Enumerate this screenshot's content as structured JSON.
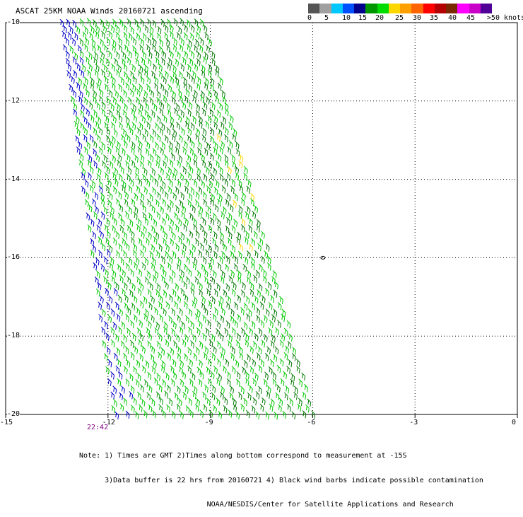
{
  "title": "ASCAT 25KM NOAA Winds 20160721 ascending",
  "colorbar": {
    "colors": [
      "#555555",
      "#a0a0a0",
      "#00c8ff",
      "#0050ff",
      "#00008c",
      "#009600",
      "#00dc00",
      "#ffd700",
      "#ffa000",
      "#ff6400",
      "#ff0000",
      "#b40000",
      "#7a2800",
      "#ff00ff",
      "#c800c8",
      "#500096"
    ],
    "labels": [
      "0",
      "5",
      "10",
      "15",
      "20",
      "25",
      "30",
      "35",
      "40",
      "45",
      ">50 knots"
    ]
  },
  "chart_data": {
    "type": "map-wind-barbs",
    "lat_range": [
      -20,
      -10
    ],
    "lon_range": [
      -15,
      0
    ],
    "lat_ticks": [
      "-10",
      "-12",
      "-14",
      "-16",
      "-18",
      "-20"
    ],
    "lon_ticks": [
      "-15",
      "-12",
      "-9",
      "-6",
      "-3",
      "0"
    ],
    "swath_corners_lat_lon": [
      [
        -10,
        -13.4
      ],
      [
        -10,
        -9.1
      ],
      [
        -20,
        -5.9
      ],
      [
        -20,
        -11.9
      ]
    ],
    "dominant_wind_speed_knots": "15-20",
    "wind_direction_deg_from": 135,
    "island_marker": {
      "lat": -16.0,
      "lon": -5.7
    }
  },
  "time_label": "22:42",
  "notes": [
    "Note: 1) Times are GMT 2)Times along bottom correspond to measurement at -15S",
    "      3)Data buffer is 22 hrs from 20160721 4) Black wind barbs indicate possible contamination",
    "                              NOAA/NESDIS/Center for Satellite Applications and Research"
  ]
}
